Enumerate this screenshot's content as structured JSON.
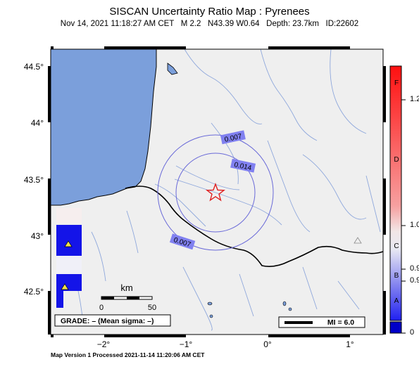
{
  "header": {
    "title": "SISCAN Uncertainty Ratio Map : Pyrenees",
    "subtitle": "Nov 14, 2021 11:18:27 AM CET   M 2.2   N43.39 W0.64   Depth: 23.7km   ID:22602"
  },
  "axes": {
    "lat_labels": [
      "44.5°",
      "44°",
      "43.5°",
      "43°",
      "42.5°"
    ],
    "lon_labels": [
      "−2°",
      "−1°",
      "0°",
      "1°"
    ]
  },
  "contours": {
    "inner_label": "0.014",
    "outer_label_top": "0.007",
    "outer_label_bottom": "0.007"
  },
  "scale_bar": {
    "unit": "km",
    "start": "0",
    "end": "50"
  },
  "grade_box": {
    "text": "GRADE: – (Mean sigma: –)"
  },
  "mi_legend": {
    "text": "MI = 6.0"
  },
  "colorbar": {
    "letters": [
      "F",
      "D",
      "C",
      "B",
      "A"
    ],
    "values": [
      "1.2",
      "1.0",
      "0.9",
      "0.9",
      "0"
    ]
  },
  "footer": {
    "text": "Map Version 1 Processed 2021-11-14 11:20:06 AM CET"
  },
  "colors": {
    "land": "#efefef",
    "sea": "#7b9fdb",
    "rivers": "#8fa8dc",
    "contour": "#6a6ad8",
    "epicenter": "#e02020",
    "station": "#f2e24a"
  }
}
